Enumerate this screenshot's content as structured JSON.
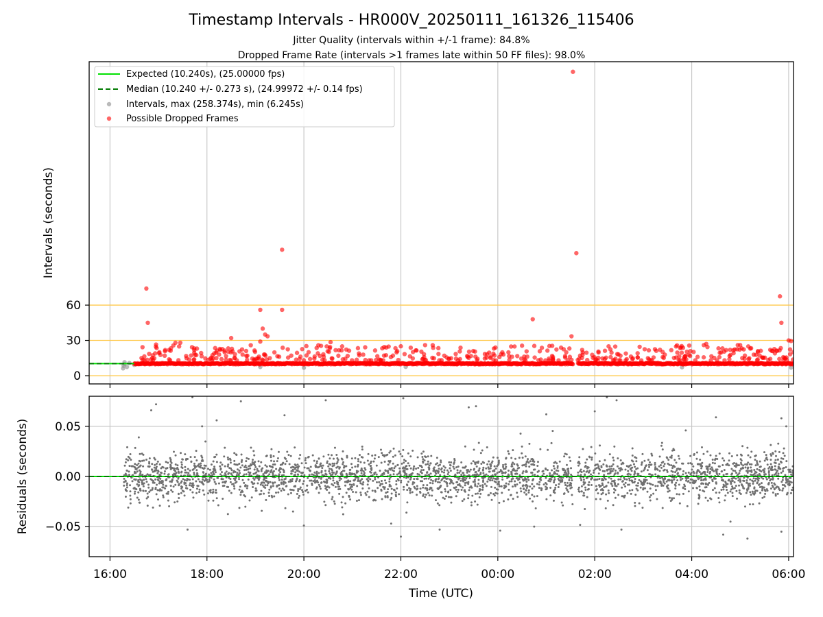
{
  "figure": {
    "title": "Timestamp Intervals - HR000V_20250111_161326_115406",
    "subtitle_line1": "Jitter Quality (intervals within +/-1 frame): 84.8%",
    "subtitle_line2": "Dropped Frame Rate (intervals >1 frames late within 50 FF files): 98.0%",
    "xlabel": "Time (UTC)"
  },
  "colors": {
    "expected_line": "#00e000",
    "median_line": "#007a00",
    "intervals_points": "#8c8c8c",
    "dropped_points": "#ff0000",
    "threshold_lines": "#ffc94a",
    "residual_points": "#707070",
    "grid": "#c8c8c8"
  },
  "chart_data": [
    {
      "type": "scatter",
      "panel": "top",
      "ylabel": "Intervals (seconds)",
      "xlim_hours": [
        15.57,
        30.1
      ],
      "ylim": [
        -7,
        267
      ],
      "yticks": [
        0,
        30,
        60
      ],
      "xticks": [
        "16:00",
        "18:00",
        "20:00",
        "22:00",
        "00:00",
        "02:00",
        "04:00",
        "06:00"
      ],
      "xticks_hours": [
        16,
        18,
        20,
        22,
        24,
        26,
        28,
        30
      ],
      "grid": "vertical",
      "legend_position": "top-left",
      "horizontal_lines": [
        0,
        30,
        60
      ],
      "expected_interval": 10.24,
      "median_interval": 10.24,
      "series": [
        {
          "name": "Expected (10.240s), (25.00000 fps)",
          "kind": "line",
          "style": "solid",
          "value": 10.24
        },
        {
          "name": "Median (10.240 +/- 0.273 s), (24.99972 +/- 0.14 fps)",
          "kind": "line",
          "style": "dashed",
          "value": 10.24
        },
        {
          "name": "Intervals, max (258.374s), min (6.245s)",
          "kind": "points",
          "points": [
            [
              16.27,
              6.2
            ],
            [
              16.28,
              8.5
            ],
            [
              16.3,
              11.5
            ],
            [
              16.3,
              9.8
            ],
            [
              16.35,
              7.4
            ],
            [
              16.4,
              10.8
            ],
            [
              16.5,
              9.2
            ],
            [
              20.0,
              6.8
            ],
            [
              22.1,
              7.5
            ],
            [
              30.05,
              6.9
            ],
            [
              27.8,
              7.2
            ],
            [
              19.1,
              7.4
            ]
          ]
        },
        {
          "name": "Possible Dropped Frames",
          "kind": "points",
          "band_start_hour": 16.5,
          "band_end_hour": 30.1,
          "band_gap_hours": [
            25.55,
            25.65
          ],
          "band_value": 10.24,
          "outliers": [
            [
              25.55,
              258.4
            ],
            [
              19.55,
              107.1
            ],
            [
              25.62,
              104.2
            ],
            [
              16.75,
              74.1
            ],
            [
              29.82,
              67.5
            ],
            [
              19.1,
              56.0
            ],
            [
              19.55,
              56.0
            ],
            [
              16.78,
              45.0
            ],
            [
              29.85,
              45.0
            ],
            [
              24.72,
              48.0
            ],
            [
              30.0,
              30.0
            ],
            [
              30.05,
              29.5
            ],
            [
              25.52,
              33.5
            ],
            [
              19.15,
              40.0
            ],
            [
              19.2,
              35.0
            ],
            [
              19.25,
              33.5
            ],
            [
              18.5,
              32.0
            ],
            [
              19.1,
              29.0
            ],
            [
              20.55,
              28.5
            ],
            [
              16.95,
              26.5
            ],
            [
              17.45,
              28.0
            ],
            [
              17.35,
              28.0
            ],
            [
              28.95,
              26.0
            ],
            [
              29.0,
              26.0
            ],
            [
              28.25,
              26.0
            ],
            [
              28.3,
              27.0
            ],
            [
              24.5,
              25.5
            ],
            [
              22.0,
              25.0
            ],
            [
              22.5,
              26.0
            ],
            [
              16.65,
              15.0
            ],
            [
              30.1,
              20.0
            ]
          ]
        }
      ]
    },
    {
      "type": "scatter",
      "panel": "bottom",
      "ylabel": "Residuals (seconds)",
      "xlim_hours": [
        15.57,
        30.1
      ],
      "ylim": [
        -0.08,
        0.08
      ],
      "yticks": [
        -0.05,
        0.0,
        0.05
      ],
      "ytick_labels": [
        "−0.05",
        "0.00",
        "0.05"
      ],
      "xticks": [
        "16:00",
        "18:00",
        "20:00",
        "22:00",
        "00:00",
        "02:00",
        "04:00",
        "06:00"
      ],
      "xticks_hours": [
        16,
        18,
        20,
        22,
        24,
        26,
        28,
        30
      ],
      "grid": "both",
      "zero_lines": [
        "expected",
        "median"
      ],
      "residual_spread_sd": 0.012,
      "notable_points": [
        [
          17.6,
          -0.053
        ],
        [
          18.7,
          0.075
        ],
        [
          19.6,
          0.061
        ],
        [
          20.0,
          -0.049
        ],
        [
          20.45,
          0.076
        ],
        [
          21.8,
          -0.047
        ],
        [
          22.0,
          -0.06
        ],
        [
          22.05,
          0.078
        ],
        [
          22.8,
          -0.053
        ],
        [
          23.4,
          0.069
        ],
        [
          23.55,
          0.07
        ],
        [
          24.05,
          -0.054
        ],
        [
          24.75,
          -0.05
        ],
        [
          25.0,
          0.062
        ],
        [
          26.25,
          0.079
        ],
        [
          26.45,
          0.076
        ],
        [
          26.55,
          -0.053
        ],
        [
          26.0,
          0.065
        ],
        [
          28.5,
          0.059
        ],
        [
          28.65,
          -0.058
        ],
        [
          29.15,
          -0.062
        ],
        [
          29.85,
          -0.055
        ],
        [
          29.85,
          0.058
        ],
        [
          16.85,
          0.066
        ],
        [
          16.95,
          0.072
        ],
        [
          17.7,
          0.079
        ],
        [
          17.9,
          0.05
        ],
        [
          18.2,
          0.056
        ],
        [
          29.95,
          0.05
        ],
        [
          28.8,
          -0.045
        ]
      ]
    }
  ]
}
